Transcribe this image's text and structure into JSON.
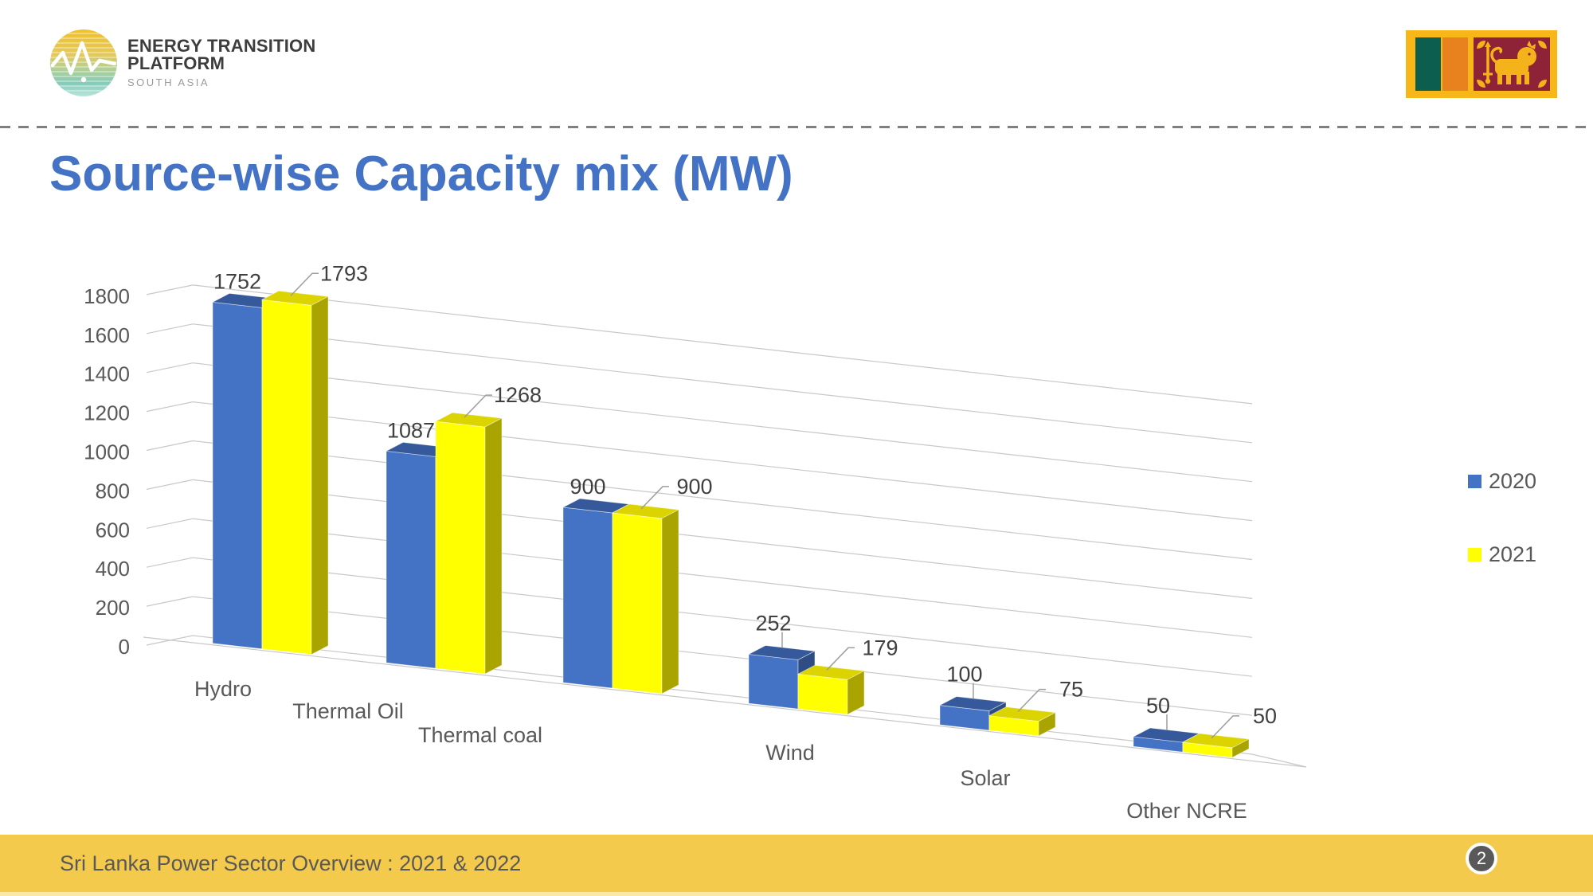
{
  "header": {
    "logo": {
      "line1": "ENERGY TRANSITION",
      "line2": "PLATFORM",
      "line3": "SOUTH ASIA"
    },
    "flag": "sri-lanka-flag"
  },
  "title": "Source-wise Capacity mix (MW)",
  "chart_data": {
    "type": "bar",
    "style": "3d-column",
    "title": "Source-wise Capacity mix (MW)",
    "categories": [
      "Hydro",
      "Thermal Oil",
      "Thermal coal",
      "Wind",
      "Solar",
      "Other NCRE"
    ],
    "series": [
      {
        "name": "2020",
        "color": "#4472C4",
        "values": [
          1752,
          1087,
          900,
          252,
          100,
          50
        ]
      },
      {
        "name": "2021",
        "color": "#FFFF00",
        "values": [
          1793,
          1268,
          900,
          179,
          75,
          50
        ]
      }
    ],
    "ylim": [
      0,
      1800
    ],
    "ytick_step": 200,
    "yticks": [
      0,
      200,
      400,
      600,
      800,
      1000,
      1200,
      1400,
      1600,
      1800
    ],
    "grid": true,
    "legend_position": "right"
  },
  "legend": {
    "items": [
      {
        "label": "2020",
        "color": "#4472C4"
      },
      {
        "label": "2021",
        "color": "#FFFF00"
      }
    ]
  },
  "footer": {
    "text": "Sri Lanka Power Sector Overview : 2021 & 2022",
    "page": "2"
  }
}
